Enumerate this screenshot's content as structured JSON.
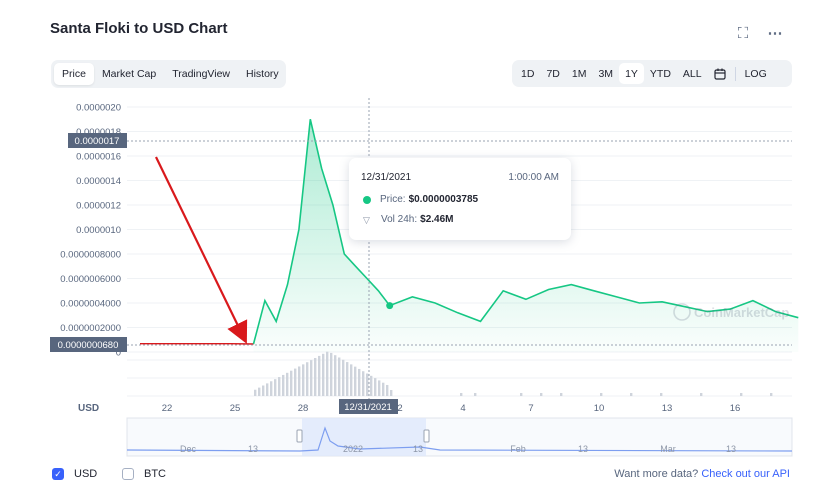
{
  "title": "Santa Floki to USD Chart",
  "header_icons": {
    "fullscreen": "fullscreen-icon",
    "more": "more-dots-icon"
  },
  "tabs": [
    "Price",
    "Market Cap",
    "TradingView",
    "History"
  ],
  "active_tab": "Price",
  "ranges": [
    "1D",
    "7D",
    "1M",
    "3M",
    "1Y",
    "YTD",
    "ALL"
  ],
  "active_range": "1Y",
  "calendar_icon": "calendar-icon",
  "log_label": "LOG",
  "y_axis": {
    "ticks": [
      "0.0000020",
      "0.0000018",
      "0.0000016",
      "0.0000014",
      "0.0000012",
      "0.0000010",
      "0.0000008000",
      "0.0000006000",
      "0.0000004000",
      "0.0000002000",
      "0"
    ],
    "volume_zero": "0",
    "currency": "USD"
  },
  "crosshair": {
    "price_label": "0.0000017",
    "baseline_label": "0.0000000680",
    "date_label": "12/31/2021"
  },
  "x_axis": {
    "ticks": [
      "22",
      "25",
      "28",
      "31",
      "2",
      "4",
      "7",
      "10",
      "13",
      "16"
    ]
  },
  "navigator": {
    "labels": [
      "Dec",
      "13",
      "2022",
      "13",
      "Feb",
      "13",
      "Mar",
      "13"
    ]
  },
  "tooltip": {
    "date": "12/31/2021",
    "time": "1:00:00 AM",
    "price_label": "Price:",
    "price_value": "$0.0000003785",
    "volume_label": "Vol 24h:",
    "volume_value": "$2.46M"
  },
  "watermark": "CoinMarketCap",
  "currencies": [
    {
      "label": "USD",
      "checked": true
    },
    {
      "label": "BTC",
      "checked": false
    }
  ],
  "footer": {
    "prompt": "Want more data?",
    "link": "Check out our API"
  },
  "colors": {
    "up": "#16c784",
    "pre_listing_line": "#d9191c",
    "annotation_arrow": "#d9191c",
    "accent": "#3861fb"
  },
  "chart_data": {
    "type": "area",
    "title": "Santa Floki to USD Chart",
    "xlabel": "",
    "ylabel": "",
    "ylim": [
      0,
      2e-06
    ],
    "x": [
      "2021-12-20",
      "2021-12-24",
      "2021-12-25",
      "2021-12-25T12",
      "2021-12-26",
      "2021-12-26T12",
      "2021-12-27",
      "2021-12-27T12",
      "2021-12-28",
      "2021-12-28T12",
      "2021-12-29",
      "2021-12-29T12",
      "2021-12-30",
      "2021-12-30T12",
      "2021-12-31",
      "2022-01-01",
      "2022-01-02",
      "2022-01-03",
      "2022-01-04",
      "2022-01-05",
      "2022-01-06",
      "2022-01-07",
      "2022-01-08",
      "2022-01-09",
      "2022-01-10",
      "2022-01-11",
      "2022-01-12",
      "2022-01-13",
      "2022-01-14",
      "2022-01-15",
      "2022-01-16",
      "2022-01-17",
      "2022-01-18"
    ],
    "series": [
      {
        "values": [
          6.8e-08,
          6.8e-08,
          6.5e-08,
          4.2e-07,
          2.5e-07,
          5.5e-07,
          1e-06,
          1.9e-06,
          1.5e-06,
          1.2e-06,
          8e-07,
          7e-07,
          6e-07,
          5e-07,
          3.785e-07,
          4.5e-07,
          4e-07,
          3.2e-07,
          2.5e-07,
          5e-07,
          4.3e-07,
          5.1e-07,
          5.5e-07,
          5e-07,
          4.5e-07,
          4e-07,
          4.1e-07,
          3.7e-07,
          3.3e-07,
          3.5e-07,
          4.2e-07,
          3.3e-07,
          2.8e-07
        ]
      }
    ],
    "volume_type": "bar",
    "volume_visible": true,
    "pre_listing_price": 6.8e-08,
    "selected_point": {
      "date": "12/31/2021",
      "price": 3.785e-07,
      "volume": "$2.46M"
    }
  }
}
